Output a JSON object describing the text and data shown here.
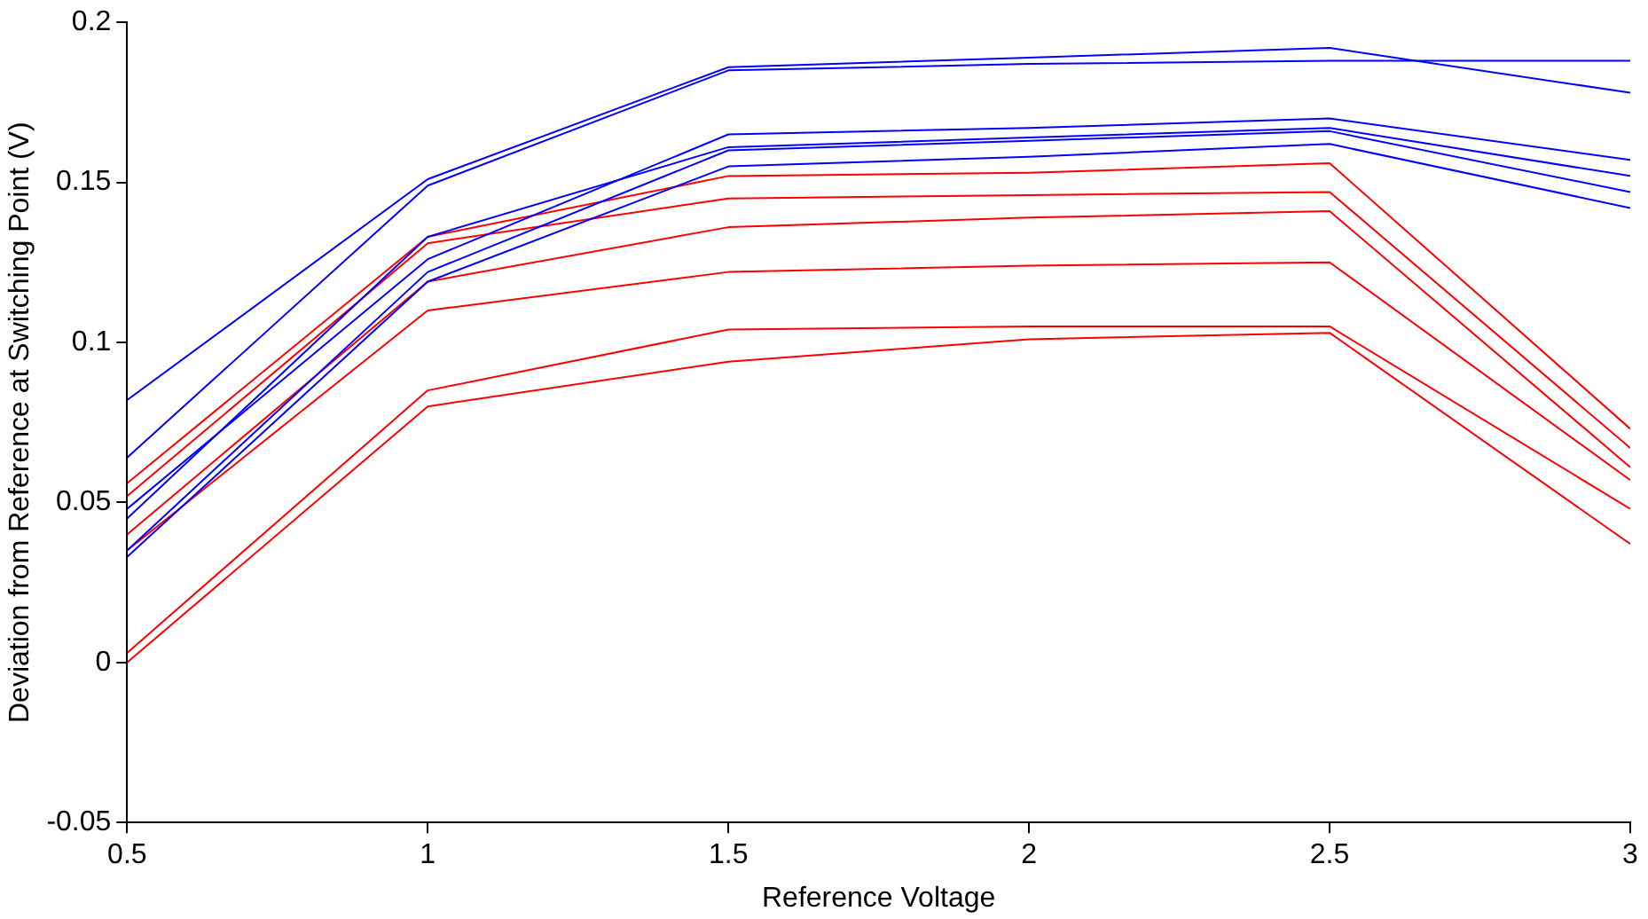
{
  "chart_data": {
    "type": "line",
    "xlabel": "Reference Voltage",
    "ylabel": "Deviation from Reference at Switching Point (V)",
    "x": [
      0.5,
      1,
      1.5,
      2,
      2.5,
      3
    ],
    "xlim": [
      0.5,
      3
    ],
    "xticks": [
      0.5,
      1,
      1.5,
      2,
      2.5,
      3
    ],
    "ylim": [
      -0.05,
      0.2
    ],
    "yticks": [
      -0.05,
      0,
      0.05,
      0.1,
      0.15,
      0.2
    ],
    "grid": false,
    "legend": false,
    "marker": "none",
    "line_style": "solid",
    "series": [
      {
        "color": "#0000ff",
        "values": [
          0.082,
          0.151,
          0.186,
          0.189,
          0.192,
          0.178
        ]
      },
      {
        "color": "#0000ff",
        "values": [
          0.064,
          0.149,
          0.185,
          0.187,
          0.188,
          0.188
        ]
      },
      {
        "color": "#0000ff",
        "values": [
          0.048,
          0.126,
          0.165,
          0.167,
          0.17,
          0.157
        ]
      },
      {
        "color": "#0000ff",
        "values": [
          0.045,
          0.133,
          0.161,
          0.164,
          0.167,
          0.152
        ]
      },
      {
        "color": "#0000ff",
        "values": [
          0.035,
          0.122,
          0.16,
          0.163,
          0.166,
          0.147
        ]
      },
      {
        "color": "#0000ff",
        "values": [
          0.033,
          0.119,
          0.155,
          0.158,
          0.162,
          0.142
        ]
      },
      {
        "color": "#ff0000",
        "values": [
          0.056,
          0.133,
          0.152,
          0.153,
          0.156,
          0.073
        ]
      },
      {
        "color": "#ff0000",
        "values": [
          0.052,
          0.131,
          0.145,
          0.146,
          0.147,
          0.067
        ]
      },
      {
        "color": "#ff0000",
        "values": [
          0.04,
          0.119,
          0.136,
          0.139,
          0.141,
          0.061
        ]
      },
      {
        "color": "#ff0000",
        "values": [
          0.035,
          0.11,
          0.122,
          0.124,
          0.125,
          0.057
        ]
      },
      {
        "color": "#ff0000",
        "values": [
          0.003,
          0.085,
          0.104,
          0.105,
          0.105,
          0.048
        ]
      },
      {
        "color": "#ff0000",
        "values": [
          0.0,
          0.08,
          0.094,
          0.101,
          0.103,
          0.037
        ]
      }
    ]
  }
}
